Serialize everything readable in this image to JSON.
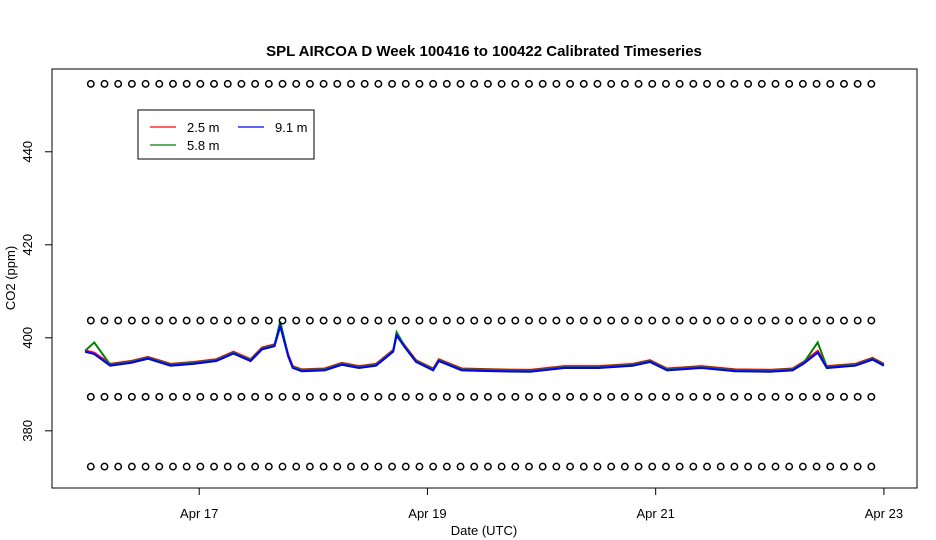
{
  "chart_data": {
    "type": "line",
    "title": "SPL AIRCOA D  Week 100416 to 100422  Calibrated Timeseries",
    "xlabel": "Date (UTC)",
    "ylabel": "CO2 (ppm)",
    "xlim": [
      -0.29,
      7.29
    ],
    "ylim": [
      367.7,
      457.8
    ],
    "xticks": [
      {
        "value": 1,
        "label": "Apr 17"
      },
      {
        "value": 3,
        "label": "Apr 19"
      },
      {
        "value": 5,
        "label": "Apr 21"
      },
      {
        "value": 7,
        "label": "Apr 23"
      }
    ],
    "yticks": [
      380,
      400,
      420,
      440
    ],
    "x": [
      0,
      0.08,
      0.22,
      0.4,
      0.55,
      0.75,
      0.95,
      1.15,
      1.3,
      1.45,
      1.55,
      1.66,
      1.71,
      1.78,
      1.82,
      1.9,
      2.1,
      2.25,
      2.4,
      2.55,
      2.7,
      2.73,
      2.8,
      2.9,
      3.05,
      3.1,
      3.3,
      3.6,
      3.9,
      4.2,
      4.5,
      4.8,
      4.95,
      5.1,
      5.4,
      5.7,
      6.0,
      6.2,
      6.3,
      6.42,
      6.5,
      6.75,
      6.9,
      7.0
    ],
    "series": [
      {
        "name": "2.5 m",
        "color": "#ff0000",
        "values": [
          397.3,
          396.8,
          394.4,
          395.0,
          395.9,
          394.4,
          394.8,
          395.4,
          397.0,
          395.4,
          397.9,
          398.6,
          402.8,
          396.4,
          393.9,
          393.2,
          393.4,
          394.6,
          393.9,
          394.4,
          397.4,
          400.8,
          398.4,
          395.2,
          393.4,
          395.4,
          393.4,
          393.2,
          393.1,
          393.9,
          393.9,
          394.4,
          395.2,
          393.4,
          393.9,
          393.2,
          393.1,
          393.4,
          394.9,
          397.2,
          393.9,
          394.4,
          395.7,
          394.4
        ]
      },
      {
        "name": "5.8 m",
        "color": "#008000",
        "values": [
          397.2,
          399.0,
          394.2,
          394.8,
          395.7,
          394.2,
          394.6,
          395.2,
          396.8,
          395.2,
          397.7,
          398.4,
          403.5,
          396.2,
          393.7,
          393.0,
          393.2,
          394.4,
          393.7,
          394.2,
          397.2,
          401.2,
          398.2,
          395.0,
          393.2,
          395.2,
          393.2,
          393.0,
          392.9,
          393.7,
          393.7,
          394.2,
          395.0,
          393.2,
          393.7,
          393.0,
          392.9,
          393.2,
          394.7,
          399.0,
          393.7,
          394.2,
          395.5,
          394.2
        ]
      },
      {
        "name": "9.1 m",
        "color": "#0000ff",
        "values": [
          397.0,
          396.5,
          394.0,
          394.6,
          395.5,
          394.0,
          394.4,
          395.0,
          396.6,
          395.0,
          397.5,
          398.2,
          402.5,
          396.0,
          393.5,
          392.8,
          393.0,
          394.2,
          393.5,
          394.0,
          397.0,
          400.5,
          398.0,
          394.8,
          393.0,
          395.0,
          393.0,
          392.8,
          392.7,
          393.5,
          393.5,
          394.0,
          394.8,
          393.0,
          393.5,
          392.8,
          392.7,
          393.0,
          394.5,
          396.8,
          393.5,
          394.0,
          395.3,
          394.0
        ]
      }
    ],
    "legend": "top-left",
    "points": {
      "color": "#000000",
      "x": [
        0.05,
        0.17,
        0.29,
        0.41,
        0.53,
        0.65,
        0.77,
        0.89,
        1.01,
        1.13,
        1.25,
        1.37,
        1.49,
        1.61,
        1.73,
        1.85,
        1.97,
        2.09,
        2.21,
        2.33,
        2.45,
        2.57,
        2.69,
        2.81,
        2.93,
        3.05,
        3.17,
        3.29,
        3.41,
        3.53,
        3.65,
        3.77,
        3.89,
        4.01,
        4.13,
        4.25,
        4.37,
        4.49,
        4.61,
        4.73,
        4.85,
        4.97,
        5.09,
        5.21,
        5.33,
        5.45,
        5.57,
        5.69,
        5.81,
        5.93,
        6.05,
        6.17,
        6.29,
        6.41,
        6.53,
        6.65,
        6.77,
        6.89
      ],
      "rows": [
        [
          454.6,
          454.6,
          454.6,
          454.6,
          454.6,
          454.6,
          454.6,
          454.6,
          454.6,
          454.6,
          454.6,
          454.6,
          454.6,
          454.6,
          454.6,
          454.6,
          454.6,
          454.6,
          454.6,
          454.6,
          454.6,
          454.6,
          454.6,
          454.6,
          454.6,
          454.6,
          454.6,
          454.6,
          454.6,
          454.6,
          454.6,
          454.6,
          454.6,
          454.6,
          454.6,
          454.6,
          454.6,
          454.6,
          454.6,
          454.6,
          454.6,
          454.6,
          454.6,
          454.6,
          454.6,
          454.6,
          454.6,
          454.6,
          454.6,
          454.6,
          454.6,
          454.6,
          454.6,
          454.6,
          454.6,
          454.6,
          454.6,
          454.6
        ],
        [
          403.7,
          403.7,
          403.7,
          403.7,
          403.7,
          403.7,
          403.7,
          403.7,
          403.7,
          403.7,
          403.7,
          403.7,
          403.7,
          403.7,
          403.7,
          403.7,
          403.7,
          403.7,
          403.7,
          403.7,
          403.7,
          403.7,
          403.7,
          403.7,
          403.7,
          403.7,
          403.7,
          403.7,
          403.7,
          403.7,
          403.7,
          403.7,
          403.7,
          403.7,
          403.7,
          403.7,
          403.7,
          403.7,
          403.7,
          403.7,
          403.7,
          403.7,
          403.7,
          403.7,
          403.7,
          403.7,
          403.7,
          403.7,
          403.7,
          403.7,
          403.7,
          403.7,
          403.7,
          403.7,
          403.7,
          403.7,
          403.7,
          403.7
        ],
        [
          387.3,
          387.3,
          387.3,
          387.3,
          387.3,
          387.3,
          387.3,
          387.3,
          387.3,
          387.3,
          387.3,
          387.3,
          387.3,
          387.3,
          387.3,
          387.3,
          387.3,
          387.3,
          387.3,
          387.3,
          387.3,
          387.3,
          387.3,
          387.3,
          387.3,
          387.3,
          387.3,
          387.3,
          387.3,
          387.3,
          387.3,
          387.3,
          387.3,
          387.3,
          387.3,
          387.3,
          387.3,
          387.3,
          387.3,
          387.3,
          387.3,
          387.3,
          387.3,
          387.3,
          387.3,
          387.3,
          387.3,
          387.3,
          387.3,
          387.3,
          387.3,
          387.3,
          387.3,
          387.3,
          387.3,
          387.3,
          387.3,
          387.3
        ],
        [
          372.3,
          372.3,
          372.3,
          372.3,
          372.3,
          372.3,
          372.3,
          372.3,
          372.3,
          372.3,
          372.3,
          372.3,
          372.3,
          372.3,
          372.3,
          372.3,
          372.3,
          372.3,
          372.3,
          372.3,
          372.3,
          372.3,
          372.3,
          372.3,
          372.3,
          372.3,
          372.3,
          372.3,
          372.3,
          372.3,
          372.3,
          372.3,
          372.3,
          372.3,
          372.3,
          372.3,
          372.3,
          372.3,
          372.3,
          372.3,
          372.3,
          372.3,
          372.3,
          372.3,
          372.3,
          372.3,
          372.3,
          372.3,
          372.3,
          372.3,
          372.3,
          372.3,
          372.3,
          372.3,
          372.3,
          372.3,
          372.3,
          372.3
        ]
      ]
    }
  }
}
